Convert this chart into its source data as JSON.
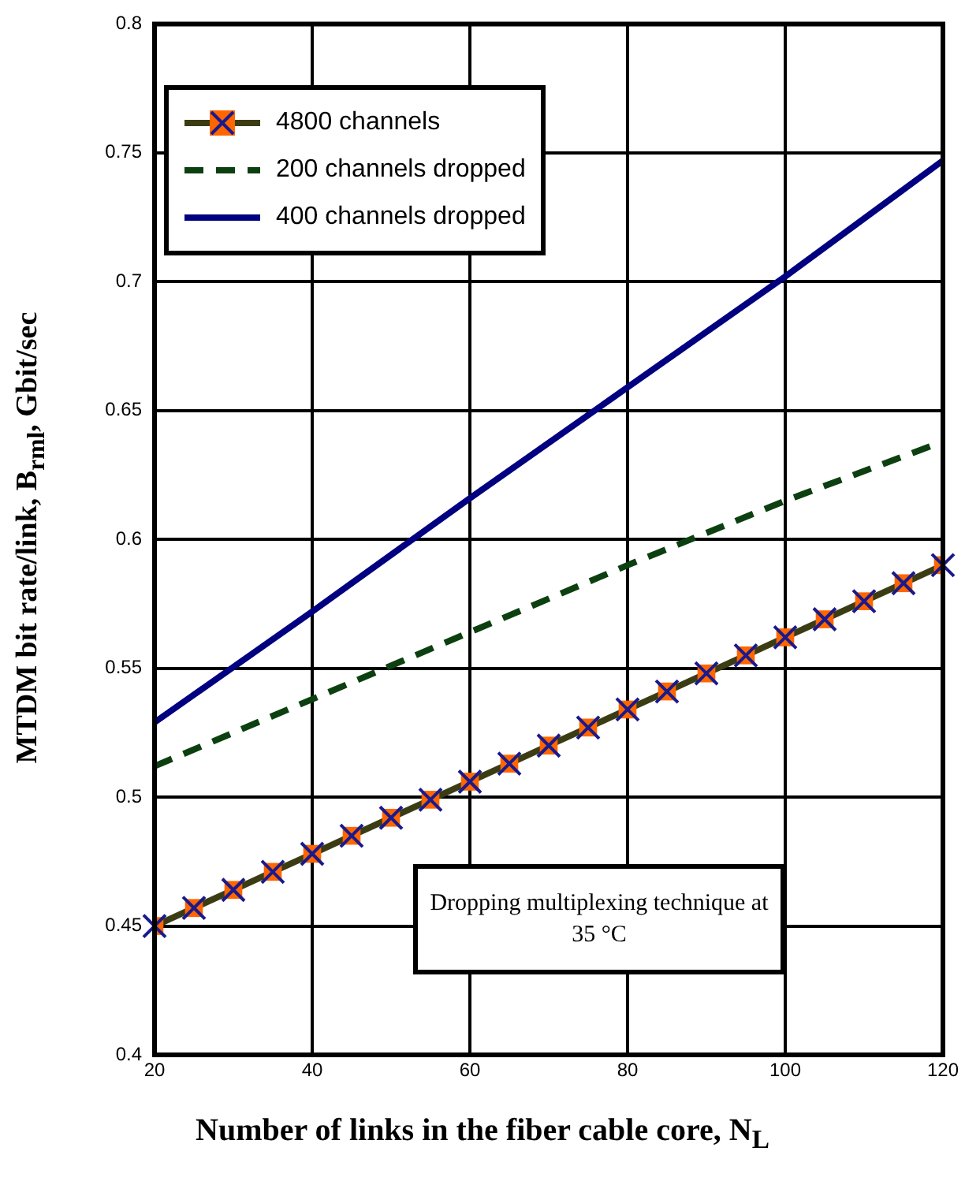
{
  "chart_data": {
    "type": "line",
    "xlabel": "Number of links in the fiber cable core, N$_{L}$",
    "ylabel": "MTDM bit rate/link, B$_{rml}$, Gbit/sec",
    "xlim": [
      20,
      120
    ],
    "xticks": [
      20,
      40,
      60,
      80,
      100,
      120
    ],
    "ylim": [
      0.4,
      0.8
    ],
    "yticks": [
      0.4,
      0.45,
      0.5,
      0.55,
      0.6,
      0.65,
      0.7,
      0.75,
      0.8
    ],
    "grid": true,
    "legend": "top left",
    "annotations": [
      "Dropping multiplexing technique at 35 °C"
    ],
    "series": [
      {
        "name": "4800 channels",
        "color": "#ff6600",
        "marker": "square",
        "line_style": "solid",
        "x": [
          20,
          25,
          30,
          35,
          40,
          45,
          50,
          55,
          60,
          65,
          70,
          75,
          80,
          85,
          90,
          95,
          100,
          105,
          110,
          115,
          120
        ],
        "values": [
          0.45,
          0.457,
          0.464,
          0.471,
          0.478,
          0.485,
          0.492,
          0.499,
          0.506,
          0.513,
          0.52,
          0.527,
          0.534,
          0.541,
          0.548,
          0.555,
          0.562,
          0.569,
          0.576,
          0.583,
          0.59
        ]
      },
      {
        "name": "200 channels dropped",
        "color": "#0d4010",
        "marker": "none",
        "line_style": "dashed",
        "x": [
          20,
          40,
          60,
          80,
          100,
          120
        ],
        "values": [
          0.512,
          0.538,
          0.564,
          0.59,
          0.615,
          0.638
        ]
      },
      {
        "name": "400 channels dropped",
        "color": "#000080",
        "marker": "none",
        "line_style": "solid",
        "x": [
          20,
          40,
          60,
          80,
          100,
          120
        ],
        "values": [
          0.529,
          0.572,
          0.616,
          0.659,
          0.702,
          0.747
        ]
      }
    ]
  }
}
